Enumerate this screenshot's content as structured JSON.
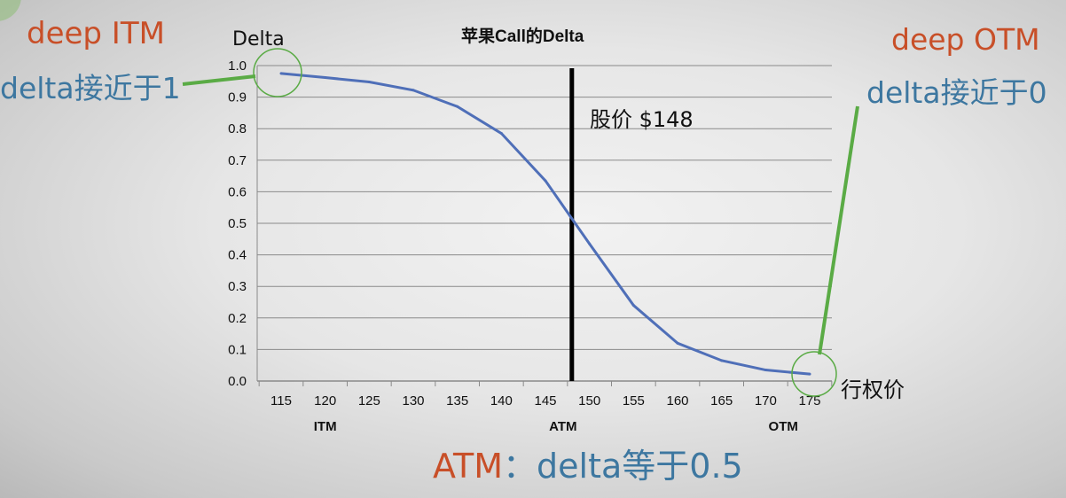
{
  "chart_data": {
    "type": "line",
    "title": "苹果Call的Delta",
    "ylabel": "Delta",
    "xlabel": "",
    "x": [
      115,
      120,
      125,
      130,
      135,
      140,
      145,
      150,
      155,
      160,
      165,
      170,
      175
    ],
    "categories": [
      "115",
      "120",
      "125",
      "130",
      "135",
      "140",
      "145",
      "150",
      "155",
      "160",
      "165",
      "170",
      "175"
    ],
    "series": [
      {
        "values": [
          0.975,
          0.962,
          0.948,
          0.922,
          0.87,
          0.785,
          0.635,
          0.435,
          0.24,
          0.12,
          0.065,
          0.035,
          0.022
        ]
      }
    ],
    "ylim": [
      0.0,
      1.0
    ],
    "yticks": [
      "0.0",
      "0.1",
      "0.2",
      "0.3",
      "0.4",
      "0.5",
      "0.6",
      "0.7",
      "0.8",
      "0.9",
      "1.0"
    ],
    "category_labels": [
      {
        "label": "ITM",
        "x": 120
      },
      {
        "label": "ATM",
        "x": 147
      },
      {
        "label": "OTM",
        "x": 172
      }
    ],
    "stock_price_x": 148,
    "grid": true,
    "line_color": "#4f6fb8"
  },
  "annotations": {
    "itm_title": "deep ITM",
    "itm_desc": "delta接近于1",
    "otm_title": "deep OTM",
    "otm_desc": "delta接近于0",
    "atm_prefix": "ATM",
    "atm_desc": "：delta等于0.5",
    "price_label": "股价 $148",
    "strike_label": "行权价",
    "y_label": "Delta"
  },
  "colors": {
    "orange": "#c84f28",
    "blue": "#3d77a0",
    "green": "#5aab45",
    "line": "#4f6fb8"
  }
}
